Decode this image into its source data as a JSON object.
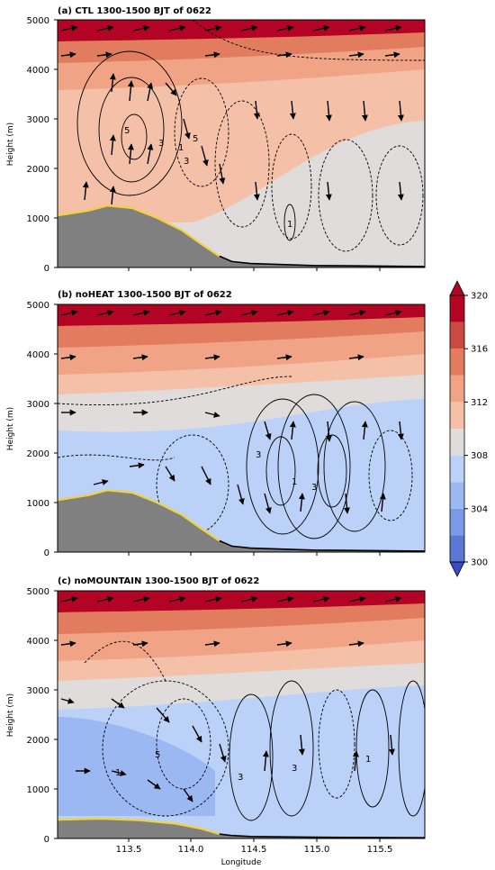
{
  "figure": {
    "xlabel": "Longitude",
    "colorbar": {
      "ticks": [
        300,
        304,
        308,
        312,
        316,
        320
      ],
      "levels": [
        300,
        302,
        304,
        306,
        308,
        310,
        312,
        314,
        316,
        318,
        320
      ],
      "colors": [
        "#3b4cc0",
        "#5b78d6",
        "#7b9ae6",
        "#9bb8f2",
        "#bcd1f7",
        "#e0dcdb",
        "#f4c1a8",
        "#f1a485",
        "#e27c5f",
        "#c94a3f",
        "#b40426"
      ],
      "extend": "both"
    }
  },
  "chart_data": [
    {
      "type": "heatmap",
      "title": "(a) CTL 1300-1500 BJT of 0622",
      "xlabel": "",
      "ylabel": "Height (m)",
      "xlim": [
        112.95,
        115.9
      ],
      "ylim": [
        0,
        5000
      ],
      "xticks": [
        113.5,
        114.0,
        114.5,
        115.0,
        115.5
      ],
      "yticks": [
        0,
        1000,
        2000,
        3000,
        4000,
        5000
      ],
      "ytick_labels": [
        "0",
        "1000",
        "2000",
        "3000",
        "4000",
        "5000"
      ],
      "terrain": {
        "x": [
          112.95,
          113.2,
          113.35,
          113.55,
          113.75,
          113.95,
          114.1,
          114.25,
          114.35,
          114.5,
          115.0,
          115.9
        ],
        "height": [
          1050,
          1150,
          1250,
          1200,
          1000,
          750,
          480,
          230,
          120,
          80,
          40,
          20
        ]
      },
      "contour_labels": [
        "5",
        "3",
        "1",
        "3",
        "5",
        "1"
      ]
    },
    {
      "type": "heatmap",
      "title": "(b) noHEAT 1300-1500 BJT of 0622",
      "xlabel": "",
      "ylabel": "Height (m)",
      "xlim": [
        112.95,
        115.9
      ],
      "ylim": [
        0,
        5000
      ],
      "xticks": [
        113.5,
        114.0,
        114.5,
        115.0,
        115.5
      ],
      "yticks": [
        0,
        1000,
        2000,
        3000,
        4000,
        5000
      ],
      "ytick_labels": [
        "0",
        "1000",
        "2000",
        "3000",
        "4000",
        "5000"
      ],
      "terrain": {
        "x": [
          112.95,
          113.2,
          113.35,
          113.55,
          113.75,
          113.95,
          114.1,
          114.25,
          114.35,
          114.5,
          115.0,
          115.9
        ],
        "height": [
          1050,
          1150,
          1250,
          1200,
          1000,
          750,
          480,
          230,
          120,
          80,
          40,
          20
        ]
      },
      "contour_labels": [
        "3",
        "1",
        "3"
      ]
    },
    {
      "type": "heatmap",
      "title": "(c) noMOUNTAIN 1300-1500 BJT of 0622",
      "xlabel": "Longitude",
      "ylabel": "Height (m)",
      "xlim": [
        112.95,
        115.9
      ],
      "ylim": [
        0,
        5000
      ],
      "xticks": [
        113.5,
        114.0,
        114.5,
        115.0,
        115.5
      ],
      "xtick_labels": [
        "113.5",
        "114.0",
        "114.5",
        "115.0",
        "115.5"
      ],
      "yticks": [
        0,
        1000,
        2000,
        3000,
        4000,
        5000
      ],
      "ytick_labels": [
        "0",
        "1000",
        "2000",
        "3000",
        "4000",
        "5000"
      ],
      "terrain": {
        "x": [
          112.95,
          113.3,
          113.6,
          113.9,
          114.1,
          114.25,
          114.35,
          114.5,
          115.0,
          115.9
        ],
        "height": [
          380,
          400,
          370,
          300,
          200,
          90,
          60,
          40,
          25,
          15
        ]
      },
      "contour_labels": [
        "5",
        "1",
        "3",
        "3",
        "1"
      ]
    }
  ]
}
